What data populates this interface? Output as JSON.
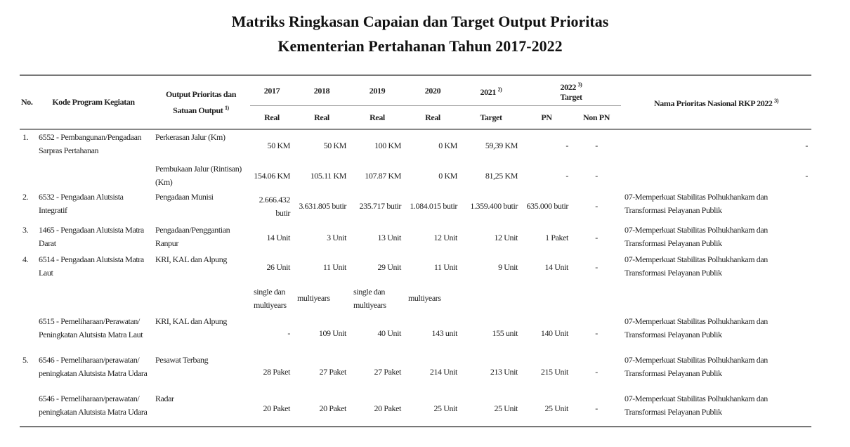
{
  "title": {
    "line1": "Matriks Ringkasan Capaian dan Target Output Prioritas",
    "line2": "Kementerian Pertahanan Tahun 2017-2022"
  },
  "header": {
    "no": "No.",
    "kode": "Kode Program Kegiatan",
    "output": "Output Prioritas dan Satuan Output",
    "output_sup": "1)",
    "y2017": "2017",
    "y2018": "2018",
    "y2019": "2019",
    "y2020": "2020",
    "y2021": "2021",
    "y2021_sup": "2)",
    "y2022": "2022",
    "y2022_sup": "3)",
    "target": "Target",
    "real": "Real",
    "target_2021": "Target",
    "pn": "PN",
    "non_pn": "Non PN",
    "nama": "Nama Prioritas Nasional RKP 2022",
    "nama_sup": "3)"
  },
  "rows": [
    {
      "no": "1.",
      "kode": "6552 - Pembangunan/Pengadaan Sarpras Pertahanan",
      "output": "Perkerasan Jalur (Km)",
      "values": [
        "50 KM",
        "50 KM",
        "100 KM",
        "0 KM",
        "59,39 KM",
        "-",
        "-"
      ],
      "nama": "-"
    },
    {
      "no": "",
      "kode": "",
      "output": "Pembukaan Jalur (Rintisan) (Km)",
      "values": [
        "154.06 KM",
        "105.11 KM",
        "107.87 KM",
        "0 KM",
        "81,25 KM",
        "-",
        "-"
      ],
      "nama": "-"
    },
    {
      "no": "2.",
      "kode": "6532 - Pengadaan Alutsista Integratif",
      "output": "Pengadaan Munisi",
      "values": [
        "2.666.432 butir",
        "3.631.805 butir",
        "235.717 butir",
        "1.084.015 butir",
        "1.359.400 butir",
        "635.000 butir",
        "-"
      ],
      "nama": "07-Memperkuat Stabilitas Polhukhankam dan Transformasi Pelayanan Publik"
    },
    {
      "no": "3.",
      "kode": "1465 - Pengadaan Alutsista Matra Darat",
      "output": "Pengadaan/Penggantian Ranpur",
      "values": [
        "14 Unit",
        "3 Unit",
        "13 Unit",
        "12 Unit",
        "12 Unit",
        "1 Paket",
        "-"
      ],
      "nama": "07-Memperkuat Stabilitas Polhukhankam dan Transformasi Pelayanan Publik"
    },
    {
      "no": "4.",
      "kode": "6514 - Pengadaan Alutsista Matra Laut",
      "output": "KRI, KAL dan Alpung",
      "values": [
        "26 Unit",
        "11 Unit",
        "29 Unit",
        "11 Unit",
        "9 Unit",
        "14 Unit",
        "-"
      ],
      "nama": "07-Memperkuat Stabilitas Polhukhankam dan Transformasi Pelayanan Publik"
    },
    {
      "no": "",
      "kode": "",
      "output": "",
      "values": [
        "single dan multiyears",
        "multiyears",
        "single dan multiyears",
        "multiyears",
        "",
        "",
        ""
      ],
      "nama": ""
    },
    {
      "no": "",
      "kode": "6515 - Pemeliharaan/Perawatan/ Peningkatan Alutsista Matra Laut",
      "output": "KRI, KAL dan Alpung",
      "values": [
        "-",
        "109 Unit",
        "40 Unit",
        "143 unit",
        "155 unit",
        "140 Unit",
        "-"
      ],
      "nama": "07-Memperkuat Stabilitas Polhukhankam dan Transformasi Pelayanan Publik"
    },
    {
      "no": "5.",
      "kode": "6546 - Pemeliharaan/perawatan/ peningkatan Alutsista Matra Udara",
      "output": "Pesawat Terbang",
      "values": [
        "28 Paket",
        "27 Paket",
        "27 Paket",
        "214 Unit",
        "213 Unit",
        "215 Unit",
        "-"
      ],
      "nama": "07-Memperkuat Stabilitas Polhukhankam dan Transformasi Pelayanan Publik"
    },
    {
      "no": "",
      "kode": "6546 - Pemeliharaan/perawatan/ peningkatan Alutsista Matra Udara",
      "output": "Radar",
      "values": [
        "20 Paket",
        "20 Paket",
        "20 Paket",
        "25 Unit",
        "25 Unit",
        "25 Unit",
        "-"
      ],
      "nama": "07-Memperkuat Stabilitas Polhukhankam dan Transformasi Pelayanan Publik"
    }
  ]
}
